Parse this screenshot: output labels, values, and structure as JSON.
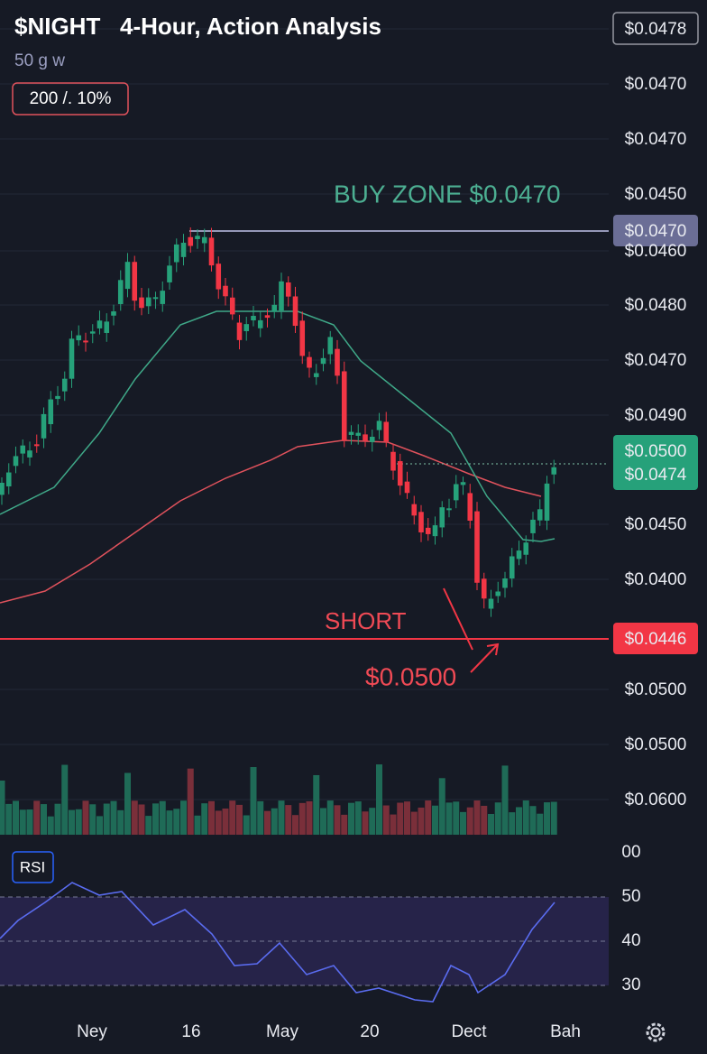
{
  "header": {
    "title": "$NIGHT   4-Hour, Action Analysis",
    "subtitle": "50 g w",
    "badge": "200 /. 10%"
  },
  "price_axis": [
    "$0.0478",
    "$0.0470",
    "$0.0470",
    "$0.0450",
    "$0.0470",
    "$0.0460",
    "$0.0480",
    "$0.0470",
    "$0.0490",
    "$0.0500",
    "$0.0474",
    "$0.0450",
    "$0.0400",
    "$0.0446",
    "$0.0500",
    "$0.0500",
    "$0.0600"
  ],
  "annotations": {
    "buy_zone": "BUY ZONE $0.0470",
    "short": "SHORT",
    "target": "$0.0500"
  },
  "x_axis": [
    "Ney",
    "16",
    "May",
    "20",
    "Dect",
    "Bah"
  ],
  "rsi": {
    "label": "RSI",
    "ticks": [
      "00",
      "50",
      "40",
      "30"
    ]
  }
}
